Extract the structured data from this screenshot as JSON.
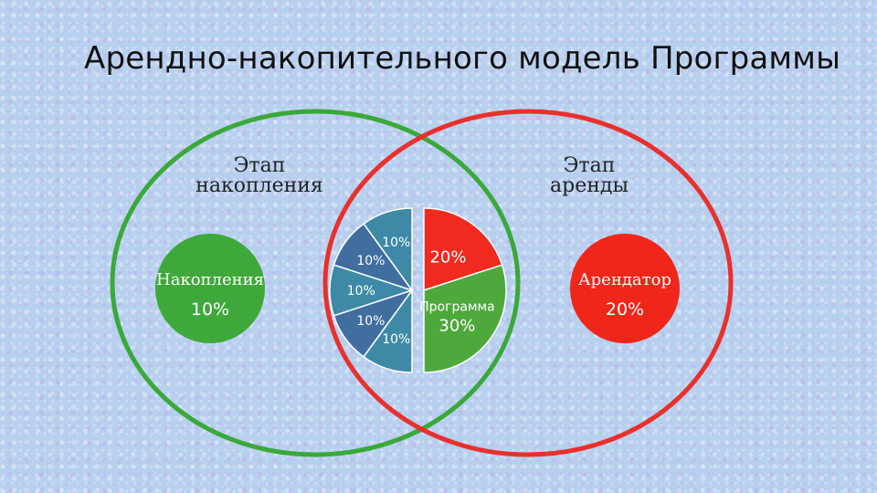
{
  "title": "Арендно-накопительного модель Программы",
  "colors": {
    "accumulation_circle": "#3aa83a",
    "rent_circle": "#e8302c",
    "blue_slice": "#3f6e9f",
    "teal_slice": "#3e8aa6",
    "red_slice": "#f02a1e",
    "green_slice": "#4ea83c",
    "savings_bubble": "#3ea83a",
    "tenant_bubble": "#f0261a"
  },
  "stages": {
    "accumulation": {
      "line1": "Этап",
      "line2": "накопления"
    },
    "rent": {
      "line1": "Этап",
      "line2": "аренды"
    }
  },
  "savings": {
    "label": "Накопления",
    "value": "10%"
  },
  "tenant": {
    "label": "Арендатор",
    "value": "20%"
  },
  "chart_data": {
    "type": "pie",
    "left_half": [
      {
        "label": "10%",
        "value": 10
      },
      {
        "label": "10%",
        "value": 10
      },
      {
        "label": "10%",
        "value": 10
      },
      {
        "label": "10%",
        "value": 10
      },
      {
        "label": "10%",
        "value": 10
      }
    ],
    "right_half": [
      {
        "label": "20%",
        "value": 20
      },
      {
        "name": "Программа",
        "label": "30%",
        "value": 30
      }
    ]
  }
}
